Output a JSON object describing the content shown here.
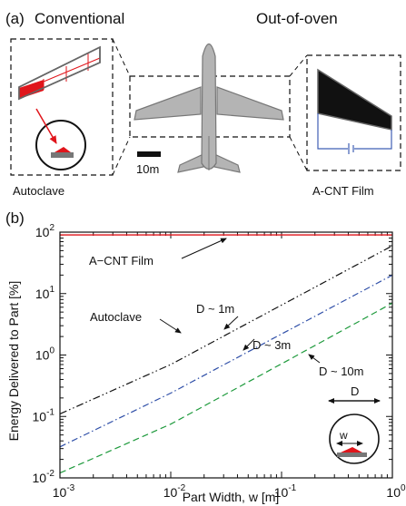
{
  "panel_a": {
    "label": "(a)",
    "left_title": "Conventional",
    "right_title": "Out-of-oven",
    "scale_label": "10m",
    "left_caption": "Autoclave",
    "right_caption": "A-CNT Film",
    "colors": {
      "red": "#e0151b",
      "aircraft": "#b4b4b4",
      "film": "#111111",
      "circuit": "#3f5fb3"
    }
  },
  "chart_data": {
    "type": "line",
    "panel_label": "(b)",
    "xlabel": "Part Width, w [m]",
    "ylabel": "Energy Delivered to Part [%]",
    "xscale": "log",
    "yscale": "log",
    "xlim": [
      0.001,
      1
    ],
    "ylim": [
      0.01,
      100
    ],
    "x_ticks": [
      {
        "value": 0.001,
        "mantissa": "10",
        "exp": "-3"
      },
      {
        "value": 0.01,
        "mantissa": "10",
        "exp": "-2"
      },
      {
        "value": 0.1,
        "mantissa": "10",
        "exp": "-1"
      },
      {
        "value": 1,
        "mantissa": "10",
        "exp": "0"
      }
    ],
    "y_ticks": [
      {
        "value": 0.01,
        "mantissa": "10",
        "exp": "-2"
      },
      {
        "value": 0.1,
        "mantissa": "10",
        "exp": "-1"
      },
      {
        "value": 1,
        "mantissa": "10",
        "exp": "0"
      },
      {
        "value": 10,
        "mantissa": "10",
        "exp": "1"
      },
      {
        "value": 100,
        "mantissa": "10",
        "exp": "2"
      }
    ],
    "series": [
      {
        "name": "A-CNT Film",
        "color": "#e0151b",
        "style": "solid",
        "x": [
          0.001,
          1
        ],
        "y": [
          90,
          90
        ]
      },
      {
        "name": "D ~ 1m",
        "color": "#111111",
        "style": "dashdotdot",
        "x": [
          0.001,
          0.01,
          0.1,
          1
        ],
        "y": [
          0.11,
          0.7,
          6.5,
          60
        ]
      },
      {
        "name": "D ~ 3m",
        "color": "#2f4fa8",
        "style": "dashdot",
        "x": [
          0.001,
          0.01,
          0.1,
          1
        ],
        "y": [
          0.032,
          0.24,
          2.2,
          20
        ]
      },
      {
        "name": "D ~ 10m",
        "color": "#1e9a3c",
        "style": "dashed",
        "x": [
          0.001,
          0.01,
          0.1,
          1
        ],
        "y": [
          0.012,
          0.075,
          0.72,
          7
        ]
      }
    ],
    "annotations": {
      "acnt": "A−CNT Film",
      "autoclave": "Autoclave",
      "d1": "D ~ 1m",
      "d3": "D ~ 3m",
      "d10": "D ~ 10m",
      "inset_D": "D",
      "inset_w": "w"
    },
    "grid": false
  }
}
